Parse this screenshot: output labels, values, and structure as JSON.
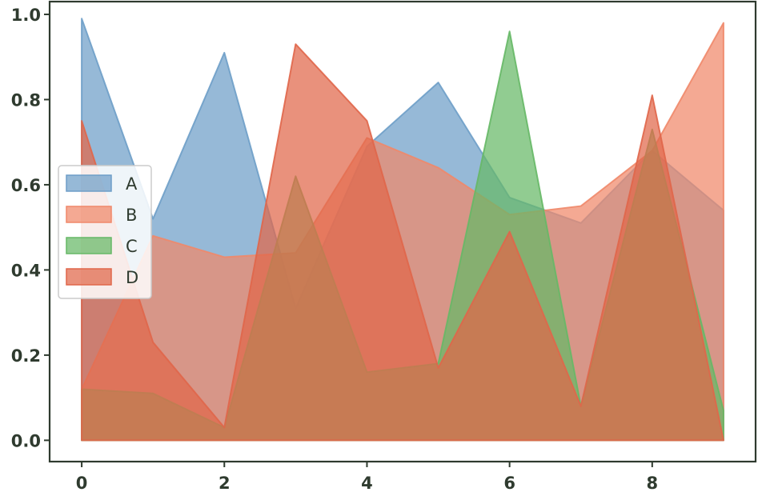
{
  "chart_data": {
    "type": "area",
    "stacked": false,
    "x": [
      0,
      1,
      2,
      3,
      4,
      5,
      6,
      7,
      8,
      9
    ],
    "xlim": [
      -0.45,
      9.45
    ],
    "ylim": [
      -0.05,
      1.03
    ],
    "xticks": [
      0,
      2,
      4,
      6,
      8
    ],
    "yticks": [
      0.0,
      0.2,
      0.4,
      0.6,
      0.8,
      1.0
    ],
    "xtick_labels": [
      "0",
      "2",
      "4",
      "6",
      "8"
    ],
    "ytick_labels": [
      "0.0",
      "0.2",
      "0.4",
      "0.6",
      "0.8",
      "1.0"
    ],
    "title": "",
    "xlabel": "",
    "ylabel": "",
    "grid": false,
    "legend": {
      "position": "center-left"
    },
    "series": [
      {
        "name": "A",
        "color": "#6e9ec8",
        "values": [
          0.99,
          0.52,
          0.91,
          0.31,
          0.69,
          0.84,
          0.57,
          0.51,
          0.68,
          0.54
        ]
      },
      {
        "name": "B",
        "color": "#f0886a",
        "values": [
          0.12,
          0.48,
          0.43,
          0.44,
          0.71,
          0.64,
          0.53,
          0.55,
          0.68,
          0.98
        ]
      },
      {
        "name": "C",
        "color": "#66b866",
        "values": [
          0.12,
          0.11,
          0.03,
          0.62,
          0.16,
          0.18,
          0.96,
          0.08,
          0.73,
          0.07
        ]
      },
      {
        "name": "D",
        "color": "#e0664a",
        "values": [
          0.75,
          0.23,
          0.03,
          0.93,
          0.75,
          0.17,
          0.49,
          0.08,
          0.81,
          0.0
        ]
      }
    ]
  }
}
